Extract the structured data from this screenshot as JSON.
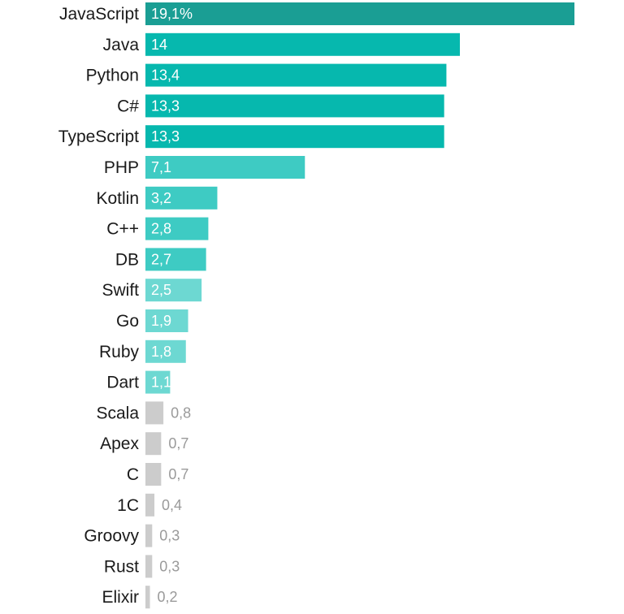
{
  "chart_data": {
    "type": "bar",
    "orientation": "horizontal",
    "title": "",
    "xlabel": "",
    "ylabel": "",
    "unit_suffix_first": "%",
    "xlim": [
      0,
      19.1
    ],
    "categories": [
      "JavaScript",
      "Java",
      "Python",
      "C#",
      "TypeScript",
      "PHP",
      "Kotlin",
      "C++",
      "DB",
      "Swift",
      "Go",
      "Ruby",
      "Dart",
      "Scala",
      "Apex",
      "C",
      "1C",
      "Groovy",
      "Rust",
      "Elixir"
    ],
    "values": [
      19.1,
      14,
      13.4,
      13.3,
      13.3,
      7.1,
      3.2,
      2.8,
      2.7,
      2.5,
      1.9,
      1.8,
      1.1,
      0.8,
      0.7,
      0.7,
      0.4,
      0.3,
      0.3,
      0.2
    ],
    "value_labels": [
      "19,1%",
      "14",
      "13,4",
      "13,3",
      "13,3",
      "7,1",
      "3,2",
      "2,8",
      "2,7",
      "2,5",
      "1,9",
      "1,8",
      "1,1",
      "0,8",
      "0,7",
      "0,7",
      "0,4",
      "0,3",
      "0,3",
      "0,2"
    ],
    "bar_colors": [
      "#1a9e94",
      "#06b8ae",
      "#06b8ae",
      "#06b8ae",
      "#06b8ae",
      "#3ecbc3",
      "#3ecbc3",
      "#3ecbc3",
      "#3ecbc3",
      "#6dd8d2",
      "#6dd8d2",
      "#6dd8d2",
      "#6dd8d2",
      "#cccccc",
      "#cccccc",
      "#cccccc",
      "#cccccc",
      "#cccccc",
      "#cccccc",
      "#cccccc"
    ],
    "label_inside": [
      true,
      true,
      true,
      true,
      true,
      true,
      true,
      true,
      true,
      true,
      true,
      true,
      true,
      false,
      false,
      false,
      false,
      false,
      false,
      false
    ]
  }
}
